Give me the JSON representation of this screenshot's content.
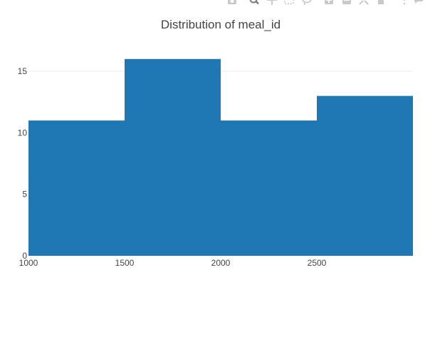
{
  "chart_data": {
    "type": "bar",
    "title": "Distribution of meal_id",
    "xlabel": "",
    "ylabel": "",
    "bins": [
      {
        "start": 1000,
        "end": 1500,
        "count": 11
      },
      {
        "start": 1500,
        "end": 2000,
        "count": 16
      },
      {
        "start": 2000,
        "end": 2500,
        "count": 11
      },
      {
        "start": 2500,
        "end": 3000,
        "count": 13
      }
    ],
    "x_ticks": [
      1000,
      1500,
      2000,
      2500
    ],
    "y_ticks": [
      0,
      5,
      10,
      15
    ],
    "xlim": [
      1000,
      3000
    ],
    "ylim": [
      0,
      16.8
    ],
    "bar_color": "#1f77b4",
    "grid": true
  },
  "modebar": {
    "icons": [
      "camera-icon",
      "zoom-icon",
      "pan-icon",
      "box-select-icon",
      "lasso-icon",
      "zoom-in-icon",
      "zoom-out-icon",
      "autoscale-icon",
      "home-icon",
      "spike-lines-icon",
      "hover-icon"
    ]
  },
  "colors": {
    "icon": "#c9c9c9",
    "icon_active": "#7a7a7a",
    "text": "#444444",
    "grid": "#eeeeee"
  }
}
